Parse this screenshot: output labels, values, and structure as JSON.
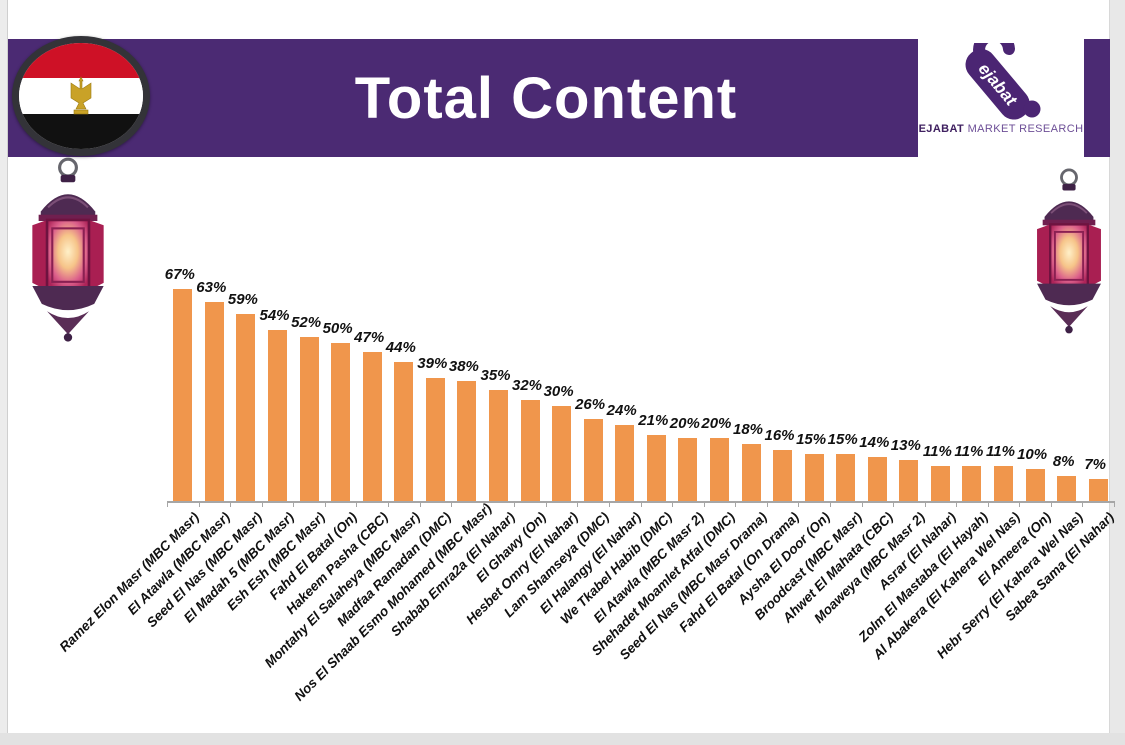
{
  "slide": {
    "title": "Total Content",
    "logo": {
      "mark_text": "ejabat",
      "caption_bold": "EJABAT",
      "caption_rest": " MARKET RESEARCH"
    }
  },
  "colors": {
    "banner_purple": "#4B2A73",
    "logo_purple": "#4B2573",
    "bar_orange": "#F0964C",
    "axis_gray": "#A6A6A6",
    "flag_red": "#CE1126",
    "flag_black": "#111111"
  },
  "chart_data": {
    "type": "bar",
    "title": "Total Content",
    "categories": [
      "Ramez Elon Masr (MBC Masr)",
      "El Atawla (MBC Masr)",
      "Seed El Nas (MBC Masr)",
      "El Madah 5 (MBC Masr)",
      "Esh Esh (MBC Masr)",
      "Fahd El Batal (On)",
      "Hakeem Pasha (CBC)",
      "Montahy El Salaheya (MBC Masr)",
      "Madfaa Ramadan (DMC)",
      "Nos El Shaab Esmo Mohamed (MBC Masr)",
      "Shabab Emra2a  (El Nahar)",
      "El Ghawy (On)",
      "Hesbet Omry (El Nahar)",
      "Lam Shamseya (DMC)",
      "El Halangy (El Nahar)",
      "We Tkabel Habib (DMC)",
      "El Atawla (MBC Masr 2)",
      "Shehadet Moamlet Atfal (DMC)",
      "Seed El Nas (MBC Masr Drama)",
      "Fahd El Batal (On Drama)",
      "Aysha El Door (On)",
      "Broodcast (MBC Masr)",
      "Ahwet El Mahata (CBC)",
      "Moaweya (MBC Masr 2)",
      "Asrar (El Nahar)",
      "Zolm El Mastaba (El Hayah)",
      "Al Abakera (El Kahera Wel Nas)",
      "El Ameera (On)",
      "Hebr Serry (El Kahera Wel Nas)",
      "Sabea Sama (El Nahar)"
    ],
    "values": [
      67,
      63,
      59,
      54,
      52,
      50,
      47,
      44,
      39,
      38,
      35,
      32,
      30,
      26,
      24,
      21,
      20,
      20,
      18,
      16,
      15,
      15,
      14,
      13,
      11,
      11,
      11,
      10,
      8,
      7
    ],
    "value_suffix": "%",
    "ylim": [
      0,
      70
    ],
    "grid": false,
    "legend": false,
    "xlabel": "",
    "ylabel": ""
  }
}
